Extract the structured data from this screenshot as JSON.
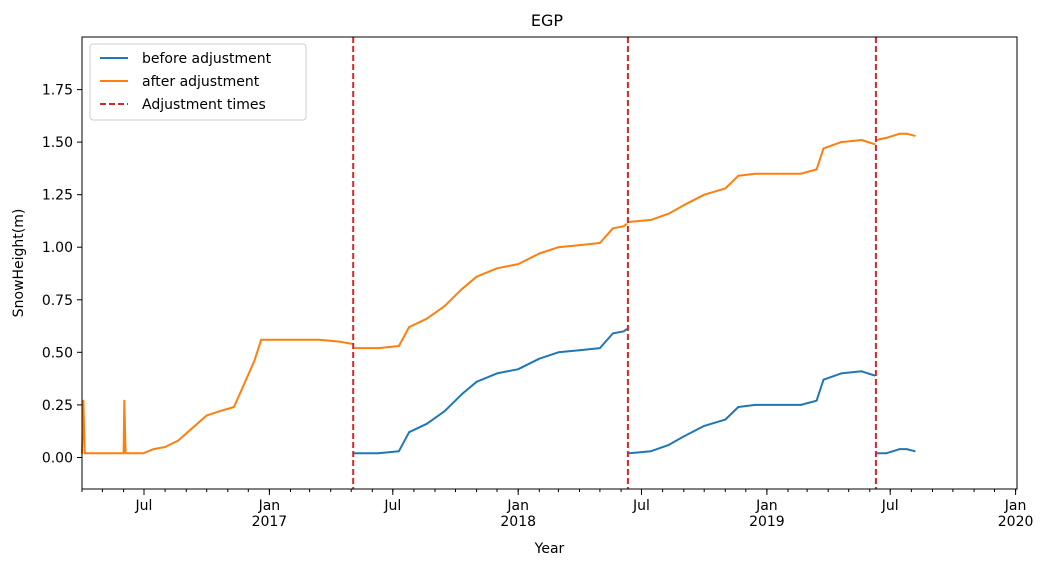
{
  "chart_data": {
    "type": "line",
    "title": "EGP",
    "xlabel": "Year",
    "ylabel": "SnowHeight(m)",
    "x_axis": "date",
    "xlim": [
      "2016-04-01",
      "2020-01-03"
    ],
    "ylim": [
      -0.15,
      2.0
    ],
    "y_ticks": [
      0.0,
      0.25,
      0.5,
      0.75,
      1.0,
      1.25,
      1.5,
      1.75
    ],
    "y_tick_labels": [
      "0.00",
      "0.25",
      "0.50",
      "0.75",
      "1.00",
      "1.25",
      "1.50",
      "1.75"
    ],
    "x_major_ticks": [
      {
        "date": "2016-07-01",
        "label": "Jul"
      },
      {
        "date": "2017-01-01",
        "label": "Jan\n2017"
      },
      {
        "date": "2017-07-01",
        "label": "Jul"
      },
      {
        "date": "2018-01-01",
        "label": "Jan\n2018"
      },
      {
        "date": "2018-07-01",
        "label": "Jul"
      },
      {
        "date": "2019-01-01",
        "label": "Jan\n2019"
      },
      {
        "date": "2019-07-01",
        "label": "Jul"
      },
      {
        "date": "2020-01-01",
        "label": "Jan\n2020"
      }
    ],
    "grid": false,
    "legend_position": "top-left",
    "series": [
      {
        "name": "before adjustment",
        "color": "#1f77b4",
        "segments": [
          [
            {
              "x": "2017-05-05",
              "y": 0.02
            },
            {
              "x": "2017-06-10",
              "y": 0.02
            },
            {
              "x": "2017-07-10",
              "y": 0.03
            },
            {
              "x": "2017-07-25",
              "y": 0.12
            },
            {
              "x": "2017-08-20",
              "y": 0.16
            },
            {
              "x": "2017-09-15",
              "y": 0.22
            },
            {
              "x": "2017-10-10",
              "y": 0.3
            },
            {
              "x": "2017-11-01",
              "y": 0.36
            },
            {
              "x": "2017-12-01",
              "y": 0.4
            },
            {
              "x": "2018-01-01",
              "y": 0.42
            },
            {
              "x": "2018-02-01",
              "y": 0.47
            },
            {
              "x": "2018-03-01",
              "y": 0.5
            },
            {
              "x": "2018-04-01",
              "y": 0.51
            },
            {
              "x": "2018-05-01",
              "y": 0.52
            },
            {
              "x": "2018-05-20",
              "y": 0.59
            },
            {
              "x": "2018-06-05",
              "y": 0.6
            },
            {
              "x": "2018-06-09",
              "y": 0.61
            }
          ],
          [
            {
              "x": "2018-06-12",
              "y": 0.02
            },
            {
              "x": "2018-07-15",
              "y": 0.03
            },
            {
              "x": "2018-08-10",
              "y": 0.06
            },
            {
              "x": "2018-09-01",
              "y": 0.1
            },
            {
              "x": "2018-10-01",
              "y": 0.15
            },
            {
              "x": "2018-11-01",
              "y": 0.18
            },
            {
              "x": "2018-11-20",
              "y": 0.24
            },
            {
              "x": "2018-12-15",
              "y": 0.25
            },
            {
              "x": "2019-01-15",
              "y": 0.25
            },
            {
              "x": "2019-02-20",
              "y": 0.25
            },
            {
              "x": "2019-03-15",
              "y": 0.27
            },
            {
              "x": "2019-03-25",
              "y": 0.37
            },
            {
              "x": "2019-04-20",
              "y": 0.4
            },
            {
              "x": "2019-05-20",
              "y": 0.41
            },
            {
              "x": "2019-06-08",
              "y": 0.39
            }
          ],
          [
            {
              "x": "2019-06-11",
              "y": 0.02
            },
            {
              "x": "2019-06-25",
              "y": 0.02
            },
            {
              "x": "2019-07-05",
              "y": 0.03
            },
            {
              "x": "2019-07-15",
              "y": 0.04
            },
            {
              "x": "2019-07-25",
              "y": 0.04
            },
            {
              "x": "2019-08-06",
              "y": 0.03
            }
          ]
        ]
      },
      {
        "name": "after adjustment",
        "color": "#ff7f0e",
        "segments": [
          [
            {
              "x": "2016-04-01",
              "y": 0.02
            },
            {
              "x": "2016-04-03",
              "y": 0.27
            },
            {
              "x": "2016-04-05",
              "y": 0.02
            },
            {
              "x": "2016-05-15",
              "y": 0.02
            },
            {
              "x": "2016-06-01",
              "y": 0.02
            },
            {
              "x": "2016-06-02",
              "y": 0.27
            },
            {
              "x": "2016-06-04",
              "y": 0.02
            },
            {
              "x": "2016-06-30",
              "y": 0.02
            },
            {
              "x": "2016-07-15",
              "y": 0.04
            },
            {
              "x": "2016-08-01",
              "y": 0.05
            },
            {
              "x": "2016-08-20",
              "y": 0.08
            },
            {
              "x": "2016-09-10",
              "y": 0.14
            },
            {
              "x": "2016-10-01",
              "y": 0.2
            },
            {
              "x": "2016-10-20",
              "y": 0.22
            },
            {
              "x": "2016-11-10",
              "y": 0.24
            },
            {
              "x": "2016-11-25",
              "y": 0.35
            },
            {
              "x": "2016-12-10",
              "y": 0.46
            },
            {
              "x": "2016-12-20",
              "y": 0.56
            },
            {
              "x": "2017-01-15",
              "y": 0.56
            },
            {
              "x": "2017-02-15",
              "y": 0.56
            },
            {
              "x": "2017-03-15",
              "y": 0.56
            },
            {
              "x": "2017-04-15",
              "y": 0.55
            },
            {
              "x": "2017-05-03",
              "y": 0.54
            }
          ],
          [
            {
              "x": "2017-05-05",
              "y": 0.52
            },
            {
              "x": "2017-06-10",
              "y": 0.52
            },
            {
              "x": "2017-07-10",
              "y": 0.53
            },
            {
              "x": "2017-07-25",
              "y": 0.62
            },
            {
              "x": "2017-08-20",
              "y": 0.66
            },
            {
              "x": "2017-09-15",
              "y": 0.72
            },
            {
              "x": "2017-10-10",
              "y": 0.8
            },
            {
              "x": "2017-11-01",
              "y": 0.86
            },
            {
              "x": "2017-12-01",
              "y": 0.9
            },
            {
              "x": "2018-01-01",
              "y": 0.92
            },
            {
              "x": "2018-02-01",
              "y": 0.97
            },
            {
              "x": "2018-03-01",
              "y": 1.0
            },
            {
              "x": "2018-04-01",
              "y": 1.01
            },
            {
              "x": "2018-05-01",
              "y": 1.02
            },
            {
              "x": "2018-05-20",
              "y": 1.09
            },
            {
              "x": "2018-06-05",
              "y": 1.1
            },
            {
              "x": "2018-06-09",
              "y": 1.11
            }
          ],
          [
            {
              "x": "2018-06-12",
              "y": 1.12
            },
            {
              "x": "2018-07-15",
              "y": 1.13
            },
            {
              "x": "2018-08-10",
              "y": 1.16
            },
            {
              "x": "2018-09-01",
              "y": 1.2
            },
            {
              "x": "2018-10-01",
              "y": 1.25
            },
            {
              "x": "2018-11-01",
              "y": 1.28
            },
            {
              "x": "2018-11-20",
              "y": 1.34
            },
            {
              "x": "2018-12-15",
              "y": 1.35
            },
            {
              "x": "2019-01-15",
              "y": 1.35
            },
            {
              "x": "2019-02-20",
              "y": 1.35
            },
            {
              "x": "2019-03-15",
              "y": 1.37
            },
            {
              "x": "2019-03-25",
              "y": 1.47
            },
            {
              "x": "2019-04-20",
              "y": 1.5
            },
            {
              "x": "2019-05-20",
              "y": 1.51
            },
            {
              "x": "2019-06-08",
              "y": 1.49
            }
          ],
          [
            {
              "x": "2019-06-11",
              "y": 1.51
            },
            {
              "x": "2019-06-25",
              "y": 1.52
            },
            {
              "x": "2019-07-05",
              "y": 1.53
            },
            {
              "x": "2019-07-15",
              "y": 1.54
            },
            {
              "x": "2019-07-25",
              "y": 1.54
            },
            {
              "x": "2019-08-06",
              "y": 1.53
            }
          ]
        ]
      }
    ],
    "adjustment_times": {
      "name": "Adjustment times",
      "color": "#d62728",
      "dates": [
        "2017-05-04",
        "2018-06-11",
        "2019-06-10"
      ]
    }
  }
}
